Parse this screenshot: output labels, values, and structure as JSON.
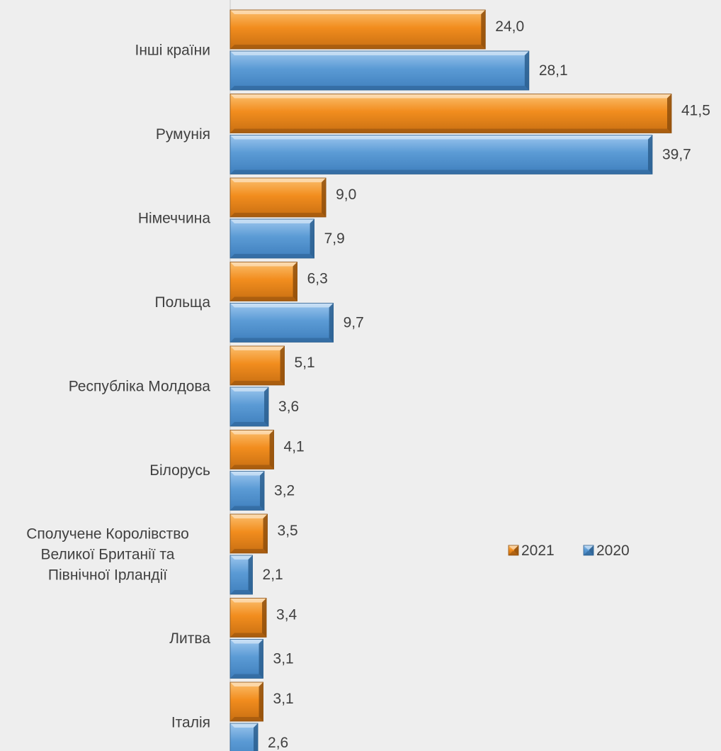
{
  "chart_data": {
    "type": "bar",
    "orientation": "horizontal",
    "categories": [
      "Інші країни",
      "Румунія",
      "Німеччина",
      "Польща",
      "Республіка Молдова",
      "Білорусь",
      "Сполучене Королівство Великої Британії та Північної Ірландії",
      "Литва",
      "Італія"
    ],
    "category_lines": [
      [
        "Інші країни"
      ],
      [
        "Румунія"
      ],
      [
        "Німеччина"
      ],
      [
        "Польща"
      ],
      [
        "Республіка Молдова"
      ],
      [
        "Білорусь"
      ],
      [
        "Сполучене Королівство",
        "Великої Британії та",
        "Північної Ірландії"
      ],
      [
        "Литва"
      ],
      [
        "Італія"
      ]
    ],
    "series": [
      {
        "name": "2021",
        "color": "#f08a1c",
        "values": [
          24.0,
          41.5,
          9.0,
          6.3,
          5.1,
          4.1,
          3.5,
          3.4,
          3.1
        ],
        "labels": [
          "24,0",
          "41,5",
          "9,0",
          "6,3",
          "5,1",
          "4,1",
          "3,5",
          "3,4",
          "3,1"
        ]
      },
      {
        "name": "2020",
        "color": "#5b9bd5",
        "values": [
          28.1,
          39.7,
          7.9,
          9.7,
          3.6,
          3.2,
          2.1,
          3.1,
          2.6
        ],
        "labels": [
          "28,1",
          "39,7",
          "7,9",
          "9,7",
          "3,6",
          "3,2",
          "2,1",
          "3,1",
          "2,6"
        ]
      }
    ],
    "legend_order": [
      "2021",
      "2020"
    ],
    "legend_position": "bottom-right",
    "title": "",
    "xlabel": "",
    "ylabel": "",
    "xlim": [
      0,
      41.5
    ],
    "grid": false
  }
}
